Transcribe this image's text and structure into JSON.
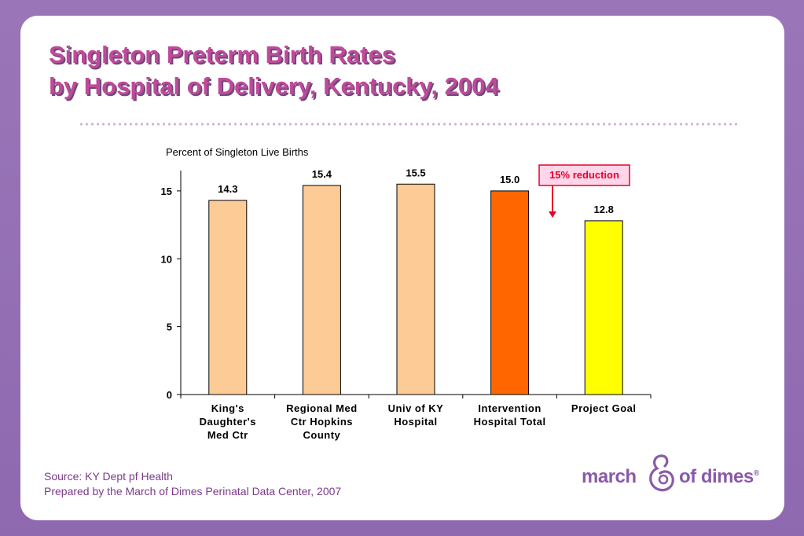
{
  "title": {
    "line1": "Singleton Preterm Birth Rates",
    "line2": "by Hospital of Delivery, Kentucky, 2004"
  },
  "chart_data": {
    "type": "bar",
    "ylabel": "Percent of Singleton Live Births",
    "ylim": [
      0,
      16.5
    ],
    "yticks": [
      0,
      5,
      10,
      15
    ],
    "categories": [
      [
        "King's",
        "Daughter's",
        "Med Ctr"
      ],
      [
        "Regional Med",
        "Ctr Hopkins",
        "County"
      ],
      [
        "Univ of KY",
        "Hospital"
      ],
      [
        "Intervention",
        "Hospital Total"
      ],
      [
        "Project Goal"
      ]
    ],
    "values": [
      14.3,
      15.4,
      15.5,
      15.0,
      12.8
    ],
    "value_labels": [
      "14.3",
      "15.4",
      "15.5",
      "15.0",
      "12.8"
    ],
    "bar_colors": [
      "#fdcc96",
      "#fdcc96",
      "#fdcc96",
      "#ff6600",
      "#ffff00"
    ],
    "annotation": {
      "text": "15% reduction",
      "color": "#e8002a",
      "box_fill": "#ffd5ea"
    },
    "grid": false
  },
  "source": {
    "line1": "Source: KY Dept pf Health",
    "line2": "Prepared by the March of Dimes Perinatal Data Center, 2007"
  },
  "logo": {
    "left": "march",
    "right": "of dimes",
    "mark": "®"
  }
}
